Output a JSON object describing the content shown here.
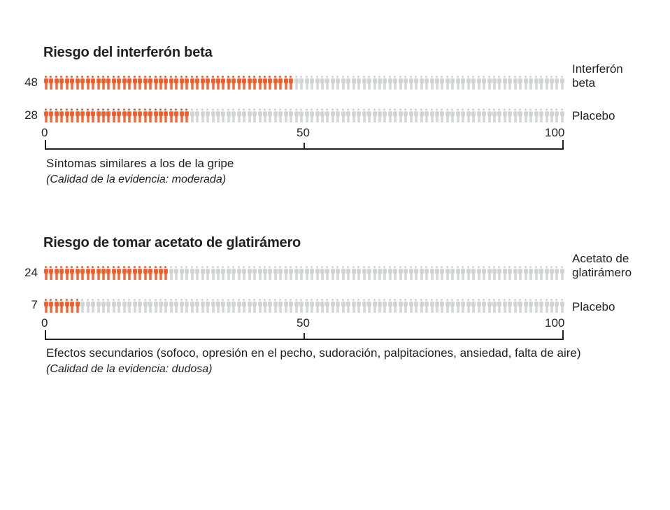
{
  "colors": {
    "highlight": "#f15a29",
    "base": "#d1d3d4",
    "text": "#231f20"
  },
  "panels": [
    {
      "title": "Riesgo del interferón beta",
      "rows": [
        {
          "count": "48",
          "value": 48,
          "label_line1": "Interferón",
          "label_line2": "beta"
        },
        {
          "count": "28",
          "value": 28,
          "label_line1": "Placebo",
          "label_line2": ""
        }
      ],
      "axis": {
        "ticks": [
          "0",
          "50",
          "100"
        ]
      },
      "caption": "Síntomas similares a los de la gripe",
      "evidence": "(Calidad de la evidencia: moderada)"
    },
    {
      "title": "Riesgo de tomar acetato de glatirámero",
      "rows": [
        {
          "count": "24",
          "value": 24,
          "label_line1": "Acetato de",
          "label_line2": "glatirámero"
        },
        {
          "count": "7",
          "value": 7,
          "label_line1": "Placebo",
          "label_line2": ""
        }
      ],
      "axis": {
        "ticks": [
          "0",
          "50",
          "100"
        ]
      },
      "caption": "Efectos secundarios (sofoco, opresión en el pecho, sudoración, palpitaciones, ansiedad, falta de aire)",
      "evidence": "(Calidad de la evidencia: dudosa)"
    }
  ],
  "chart_data": [
    {
      "type": "bar",
      "subtype": "pictogram (icon array, out of 100 people)",
      "title": "Riesgo del interferón beta",
      "categories": [
        "Interferón beta",
        "Placebo"
      ],
      "values": [
        48,
        28
      ],
      "total": 100,
      "xlabel": "Síntomas similares a los de la gripe",
      "note": "(Calidad de la evidencia: moderada)",
      "xlim": [
        0,
        100
      ],
      "xticks": [
        0,
        50,
        100
      ],
      "grid": false,
      "legend": "none (labels at right of rows)"
    },
    {
      "type": "bar",
      "subtype": "pictogram (icon array, out of 100 people)",
      "title": "Riesgo de tomar acetato de glatirámero",
      "categories": [
        "Acetato de glatirámero",
        "Placebo"
      ],
      "values": [
        24,
        7
      ],
      "total": 100,
      "xlabel": "Efectos secundarios (sofoco, opresión en el pecho, sudoración, palpitaciones, ansiedad, falta de aire)",
      "note": "(Calidad de la evidencia: dudosa)",
      "xlim": [
        0,
        100
      ],
      "xticks": [
        0,
        50,
        100
      ],
      "grid": false,
      "legend": "none (labels at right of rows)"
    }
  ]
}
